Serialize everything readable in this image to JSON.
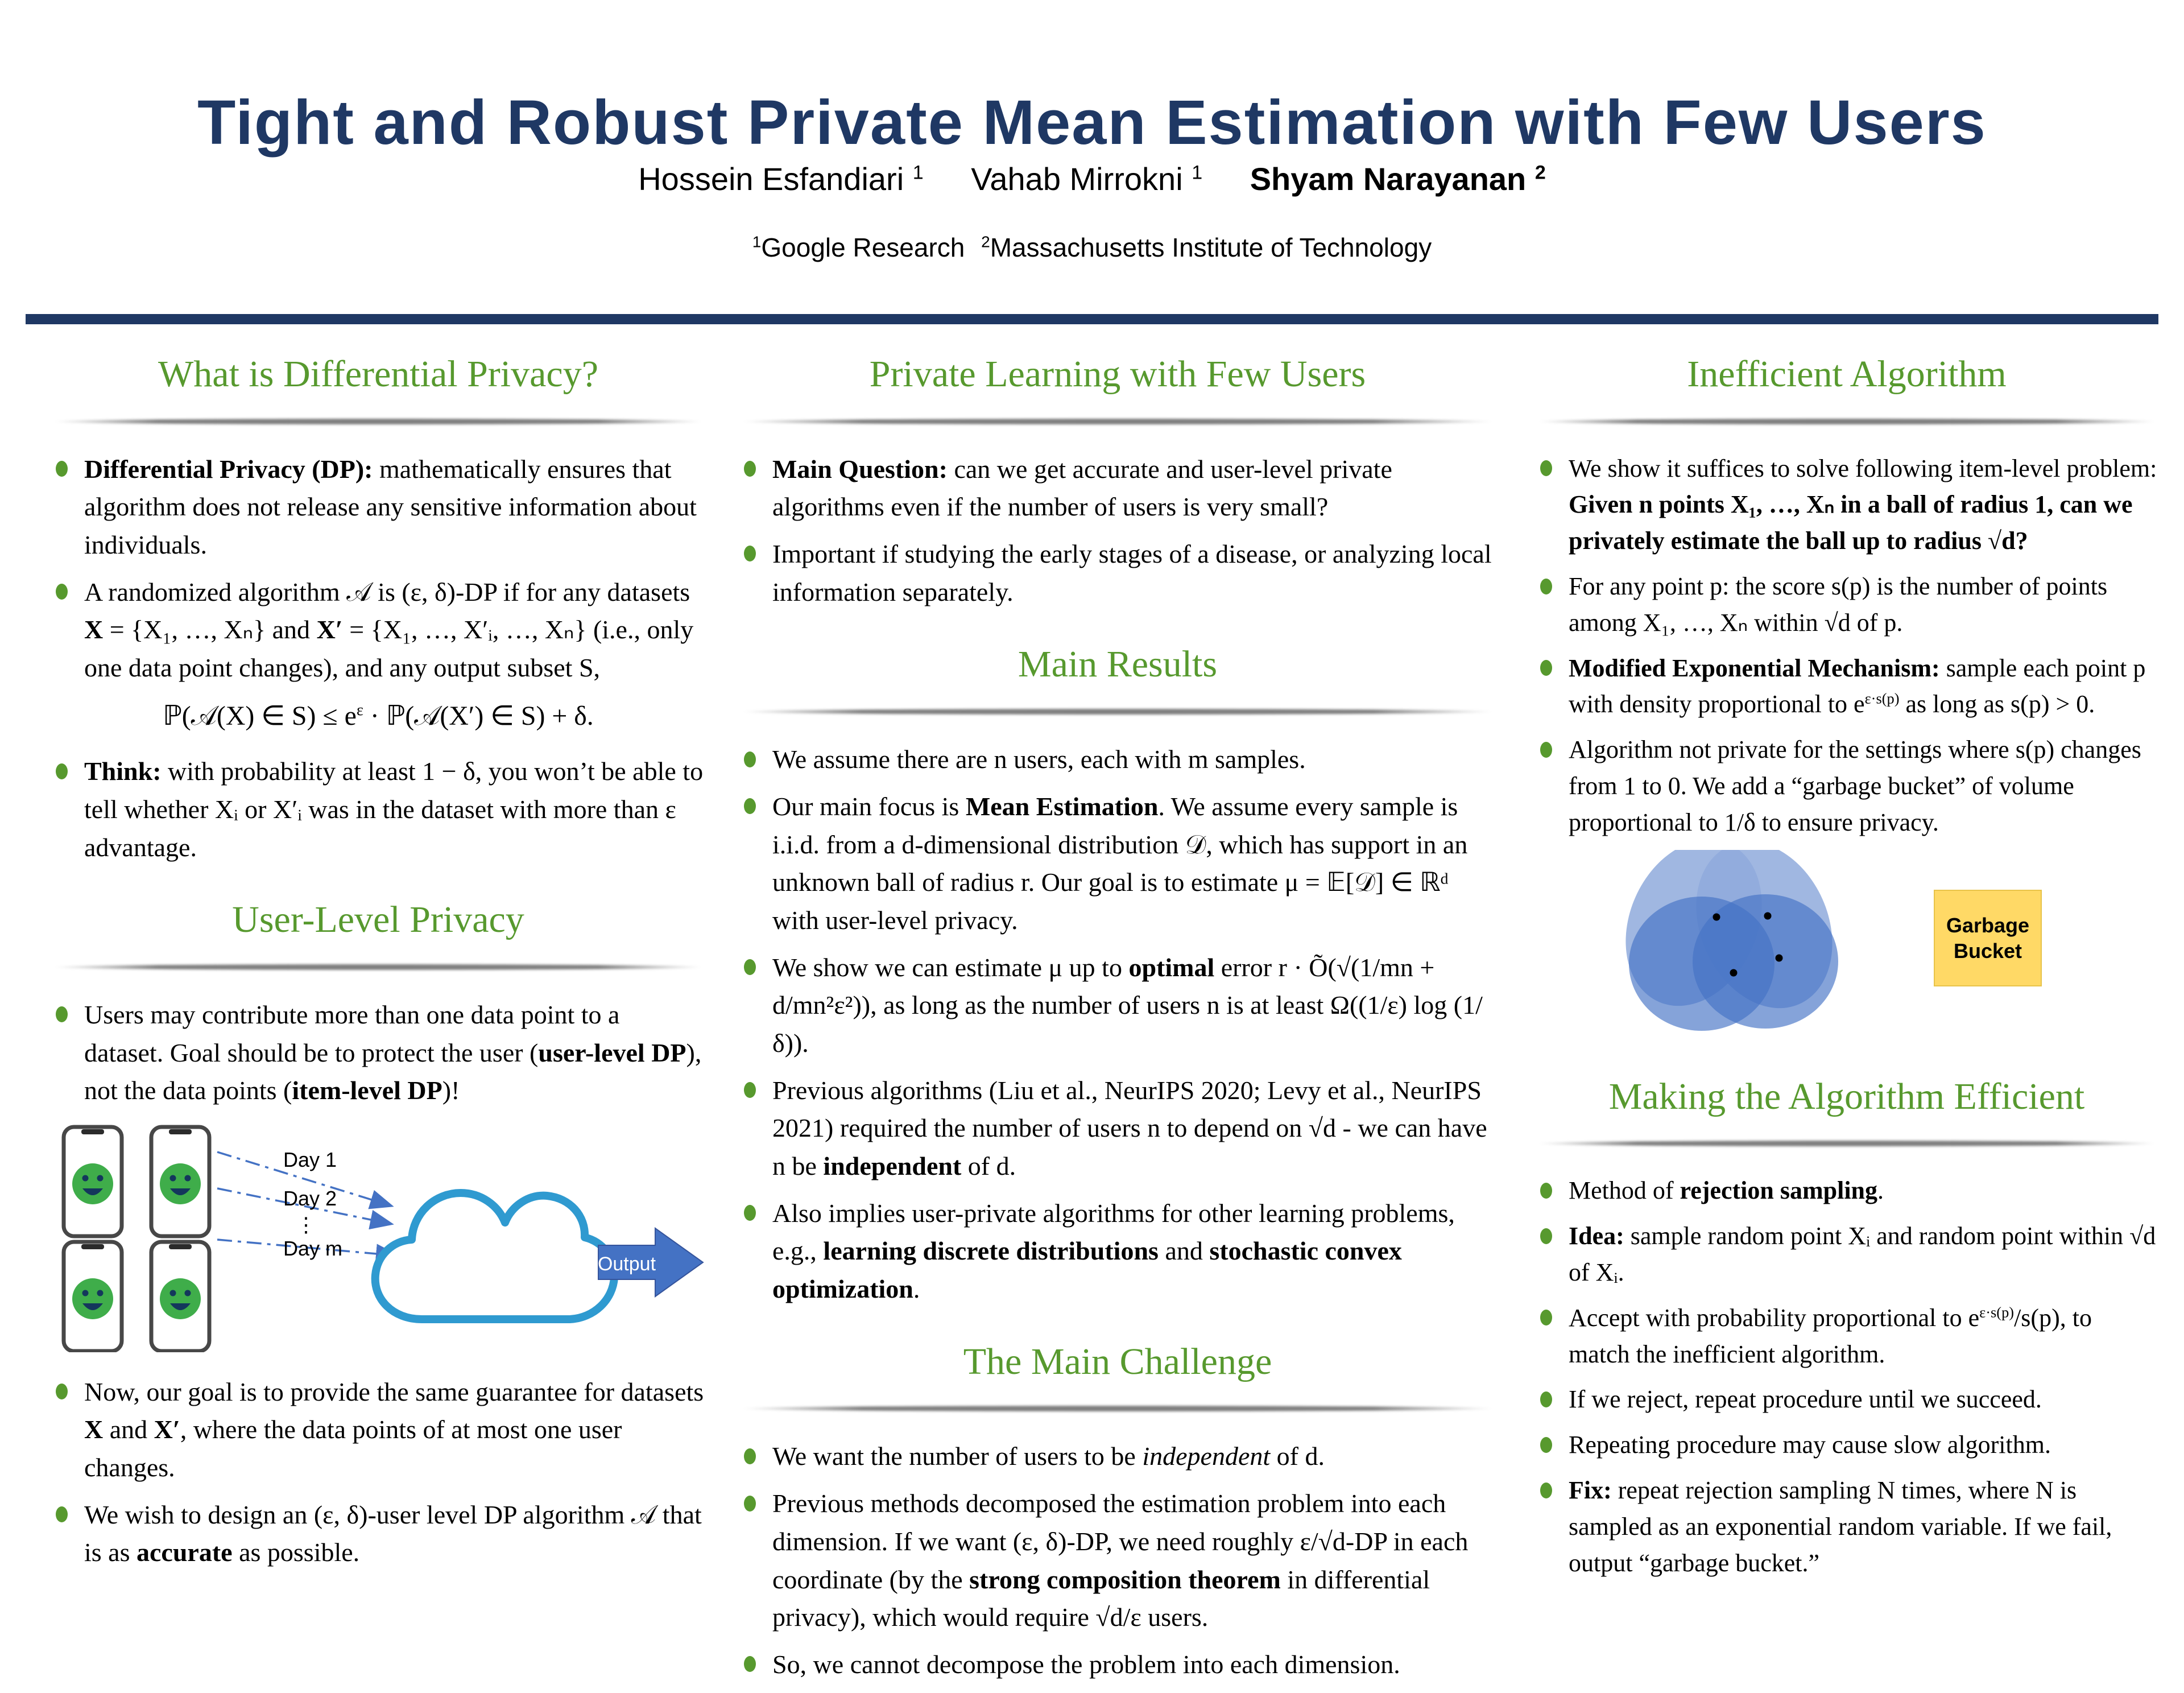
{
  "header": {
    "title": "Tight and Robust Private Mean Estimation with Few Users",
    "authors": [
      {
        "name": "Hossein Esfandiari",
        "sup": "1"
      },
      {
        "name": "Vahab Mirrokni",
        "sup": "1"
      },
      {
        "name": "Shyam Narayanan",
        "sup": "2"
      }
    ],
    "affiliations": [
      {
        "sup": "1",
        "text": "Google Research"
      },
      {
        "sup": "2",
        "text": "Massachusetts Institute of Technology"
      }
    ]
  },
  "colors": {
    "navy": "#1F3864",
    "heading_green": "#57992E",
    "cloud_blue": "#2F9AD0",
    "arrow_blue": "#4472C4",
    "venn_blue": "#4472C4",
    "venn_light_blue": "#8FAADC",
    "bucket_yellow": "#FFD966",
    "smiley_green": "#3FAD4A"
  },
  "columns": [
    {
      "sections": [
        {
          "heading": "What is Differential Privacy?",
          "bullets": [
            [
              {
                "t": "Differential Privacy (DP):",
                "b": true
              },
              {
                "t": " mathematically ensures that algorithm does not release any sensitive information about individuals."
              }
            ],
            [
              {
                "t": "A randomized algorithm 𝒜 is (ε, δ)-DP if for any datasets "
              },
              {
                "t": "X",
                "b": true
              },
              {
                "t": " = {X₁, …, Xₙ} and "
              },
              {
                "t": "X′",
                "b": true
              },
              {
                "t": " = {X₁, …, X′ᵢ, …, Xₙ} (i.e., only one data point changes), and any output subset S,"
              }
            ]
          ],
          "formula": [
            {
              "t": "ℙ(𝒜(X) ∈ S) ≤ e"
            },
            {
              "t": "ε",
              "sup": true
            },
            {
              "t": " · ℙ(𝒜(X′) ∈ S) + δ."
            }
          ],
          "bullets_after": [
            [
              {
                "t": "Think:",
                "b": true
              },
              {
                "t": " with probability at least 1 − δ, you won’t be able to tell whether Xᵢ or X′ᵢ was in the dataset with more than ε advantage."
              }
            ]
          ]
        },
        {
          "heading": "User-Level Privacy",
          "bullets": [
            [
              {
                "t": "Users may contribute more than one data point to a dataset. Goal should be to protect the user ("
              },
              {
                "t": "user-level DP",
                "b": true
              },
              {
                "t": "), not the data points ("
              },
              {
                "t": "item-level DP",
                "b": true
              },
              {
                "t": ")!"
              }
            ]
          ],
          "bullets_after": [
            [
              {
                "t": "Now, our goal is to provide the same guarantee for datasets "
              },
              {
                "t": "X",
                "b": true
              },
              {
                "t": " and "
              },
              {
                "t": "X′",
                "b": true
              },
              {
                "t": ", where the data points of at most one user changes."
              }
            ],
            [
              {
                "t": "We wish to design an (ε, δ)-user level DP algorithm 𝒜 that is as "
              },
              {
                "t": "accurate",
                "b": true
              },
              {
                "t": " as possible."
              }
            ]
          ]
        }
      ]
    },
    {
      "sections": [
        {
          "heading": "Private Learning with Few Users",
          "bullets": [
            [
              {
                "t": "Main Question:",
                "b": true
              },
              {
                "t": " can we get accurate and user-level private algorithms even if the number of users is very small?"
              }
            ],
            [
              {
                "t": "Important if studying the early stages of a disease, or analyzing local information separately."
              }
            ]
          ]
        },
        {
          "heading": "Main Results",
          "bullets": [
            [
              {
                "t": "We assume there are n users, each with m samples."
              }
            ],
            [
              {
                "t": "Our main focus is "
              },
              {
                "t": "Mean Estimation",
                "b": true
              },
              {
                "t": ". We assume every sample is i.i.d. from a d-dimensional distribution 𝒟, which has support in an unknown ball of radius r. Our goal is to estimate μ = 𝔼[𝒟] ∈ ℝᵈ with user-level privacy."
              }
            ],
            [
              {
                "t": "We show we can estimate μ up to "
              },
              {
                "t": "optimal",
                "b": true
              },
              {
                "t": " error r · Õ(√(1/mn + d/mn²ε²)), as long as the number of users n is at least Ω((1/ε) log (1/δ))."
              }
            ],
            [
              {
                "t": "Previous algorithms (Liu et al., NeurIPS 2020; Levy et al., NeurIPS 2021) required the number of users n to depend on √d - we can have n be "
              },
              {
                "t": "independent",
                "b": true
              },
              {
                "t": " of d."
              }
            ],
            [
              {
                "t": "Also implies user-private algorithms for other learning problems, e.g., "
              },
              {
                "t": "learning discrete distributions",
                "b": true
              },
              {
                "t": " and "
              },
              {
                "t": "stochastic convex optimization",
                "b": true
              },
              {
                "t": "."
              }
            ]
          ]
        },
        {
          "heading": "The Main Challenge",
          "bullets": [
            [
              {
                "t": "We want the number of users to be "
              },
              {
                "t": "independent",
                "i": true
              },
              {
                "t": " of d."
              }
            ],
            [
              {
                "t": "Previous methods decomposed the estimation problem into each dimension. If we want (ε, δ)-DP, we need roughly ε/√d-DP in each coordinate (by the "
              },
              {
                "t": "strong composition theorem",
                "b": true
              },
              {
                "t": " in differential privacy), which would require √d/ε users."
              }
            ],
            [
              {
                "t": "So, we cannot decompose the problem into each dimension."
              }
            ]
          ]
        }
      ]
    },
    {
      "sections": [
        {
          "heading": "Inefficient Algorithm",
          "bullets": [
            [
              {
                "t": "We show it suffices to solve following item-level problem: "
              },
              {
                "t": "Given n points X₁, …, Xₙ in a ball of radius 1, can we privately estimate the ball up to radius √d?",
                "b": true
              }
            ],
            [
              {
                "t": "For any point p: the score s(p) is the number of points among X₁, …, Xₙ within √d of p."
              }
            ],
            [
              {
                "t": "Modified Exponential Mechanism:",
                "b": true
              },
              {
                "t": " sample each point p with density proportional to e"
              },
              {
                "t": "ε·s(p)",
                "sup": true
              },
              {
                "t": " as long as s(p) > 0."
              }
            ],
            [
              {
                "t": "Algorithm not private for the settings where s(p) changes from 1 to 0. We add a “garbage bucket” of volume proportional to 1/δ to ensure privacy."
              }
            ]
          ]
        },
        {
          "heading": "Making the Algorithm Efficient",
          "bullets": [
            [
              {
                "t": "Method of "
              },
              {
                "t": "rejection sampling",
                "b": true
              },
              {
                "t": "."
              }
            ],
            [
              {
                "t": "Idea:",
                "b": true
              },
              {
                "t": " sample random point Xᵢ and random point within √d of Xᵢ."
              }
            ],
            [
              {
                "t": "Accept with probability proportional to e"
              },
              {
                "t": "ε·s(p)",
                "sup": true
              },
              {
                "t": "/s(p), to match the inefficient algorithm."
              }
            ],
            [
              {
                "t": "If we reject, repeat procedure until we succeed."
              }
            ],
            [
              {
                "t": "Repeating procedure may cause slow algorithm."
              }
            ],
            [
              {
                "t": "Fix:",
                "b": true
              },
              {
                "t": " repeat rejection sampling N times, where N is sampled as an exponential random variable. If we fail, output “garbage bucket.”"
              }
            ]
          ]
        }
      ]
    }
  ],
  "diagrams": {
    "user_flow": {
      "day1": "Day 1",
      "day2": "Day 2",
      "dots": "⋮",
      "daym": "Day m",
      "output": "Output"
    },
    "venn": {
      "bucket_label": "Garbage Bucket"
    }
  }
}
